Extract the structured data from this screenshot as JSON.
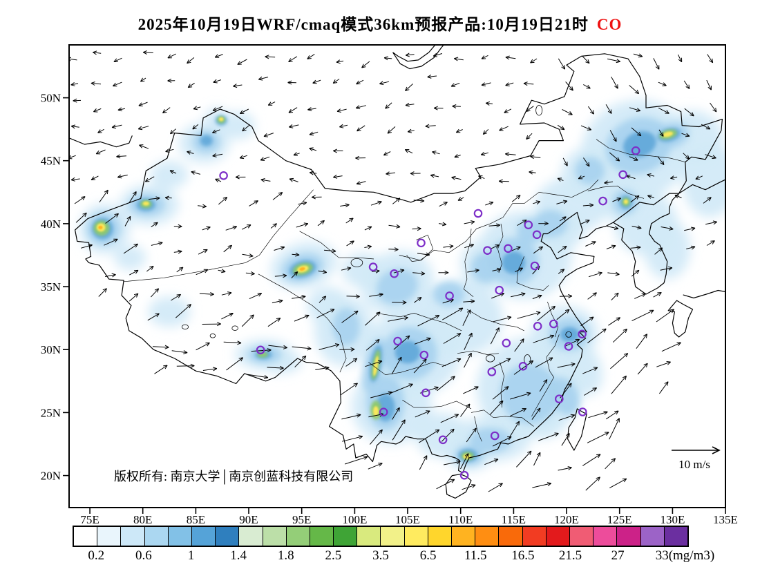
{
  "title": {
    "main": "2025年10月19日WRF/cmaq模式36km预报产品:10月19日21时",
    "species": "CO",
    "species_color": "#EE1111"
  },
  "map": {
    "copyright": "版权所有: 南京大学│南京创蓝科技有限公司",
    "wind_scale_label": "10 m/s",
    "marker_color": "#7D2EC8",
    "lat_ticks": [
      {
        "value": 50,
        "label": "50N"
      },
      {
        "value": 45,
        "label": "45N"
      },
      {
        "value": 40,
        "label": "40N"
      },
      {
        "value": 35,
        "label": "35N"
      },
      {
        "value": 30,
        "label": "30N"
      },
      {
        "value": 25,
        "label": "25N"
      },
      {
        "value": 20,
        "label": "20N"
      }
    ],
    "lon_ticks": [
      {
        "value": 75,
        "label": "75E"
      },
      {
        "value": 80,
        "label": "80E"
      },
      {
        "value": 85,
        "label": "85E"
      },
      {
        "value": 90,
        "label": "90E"
      },
      {
        "value": 95,
        "label": "95E"
      },
      {
        "value": 100,
        "label": "100E"
      },
      {
        "value": 105,
        "label": "105E"
      },
      {
        "value": 110,
        "label": "110E"
      },
      {
        "value": 115,
        "label": "115E"
      },
      {
        "value": 120,
        "label": "120E"
      },
      {
        "value": 125,
        "label": "125E"
      },
      {
        "value": 130,
        "label": "130E"
      },
      {
        "value": 135,
        "label": "135E"
      }
    ],
    "city_markers": [
      [
        87.62,
        43.82
      ],
      [
        111.65,
        40.82
      ],
      [
        126.53,
        45.8
      ],
      [
        125.32,
        43.9
      ],
      [
        123.43,
        41.8
      ],
      [
        116.4,
        39.9
      ],
      [
        117.2,
        39.13
      ],
      [
        114.48,
        38.03
      ],
      [
        112.53,
        37.87
      ],
      [
        117.0,
        36.65
      ],
      [
        101.74,
        36.56
      ],
      [
        103.73,
        36.03
      ],
      [
        106.27,
        38.47
      ],
      [
        108.95,
        34.27
      ],
      [
        113.65,
        34.72
      ],
      [
        117.27,
        31.86
      ],
      [
        118.78,
        32.04
      ],
      [
        121.47,
        31.23
      ],
      [
        120.19,
        30.26
      ],
      [
        114.31,
        30.52
      ],
      [
        104.06,
        30.67
      ],
      [
        91.11,
        29.97
      ],
      [
        106.55,
        29.57
      ],
      [
        112.94,
        28.23
      ],
      [
        115.89,
        28.68
      ],
      [
        119.3,
        26.08
      ],
      [
        106.71,
        26.57
      ],
      [
        102.73,
        25.04
      ],
      [
        108.33,
        22.84
      ],
      [
        113.23,
        23.16
      ],
      [
        110.35,
        20.02
      ],
      [
        121.52,
        25.05
      ]
    ],
    "shading_layers": [
      {
        "color": "#D3EAF8",
        "blur": 8,
        "opacity": 0.95,
        "items": [
          [
            126.5,
            45.8,
            5.2,
            4.0,
            -20
          ],
          [
            120.5,
            41.5,
            3.5,
            2.2,
            0
          ],
          [
            131.8,
            46.8,
            3.0,
            2.2,
            0
          ],
          [
            133.5,
            43.5,
            2.6,
            3.0,
            0
          ],
          [
            127.5,
            40.0,
            3.0,
            2.5,
            0
          ],
          [
            129.5,
            38.0,
            2.2,
            2.4,
            0
          ],
          [
            116.0,
            37.5,
            4.5,
            3.5,
            0
          ],
          [
            119.5,
            39.5,
            2.2,
            1.6,
            0
          ],
          [
            112.5,
            36.8,
            2.5,
            2.0,
            0
          ],
          [
            110.0,
            32.5,
            4.0,
            3.0,
            0
          ],
          [
            105.5,
            29.8,
            4.5,
            3.5,
            0
          ],
          [
            103.5,
            25.5,
            3.8,
            3.0,
            0
          ],
          [
            116.5,
            27.0,
            5.0,
            4.0,
            -15
          ],
          [
            119.8,
            31.3,
            3.2,
            2.2,
            0
          ],
          [
            112.8,
            22.9,
            3.8,
            1.8,
            0
          ],
          [
            108.2,
            23.2,
            2.5,
            1.8,
            0
          ],
          [
            104.0,
            35.3,
            3.5,
            2.5,
            -20
          ],
          [
            95.2,
            36.7,
            3.2,
            1.8,
            -15
          ],
          [
            100.8,
            36.3,
            2.0,
            1.4,
            0
          ],
          [
            99.0,
            31.5,
            2.8,
            2.8,
            0
          ],
          [
            91.5,
            29.6,
            2.8,
            1.2,
            0
          ],
          [
            82.5,
            33.0,
            2.0,
            1.2,
            0
          ],
          [
            80.6,
            41.5,
            2.8,
            1.6,
            0
          ],
          [
            76.4,
            39.6,
            2.4,
            2.0,
            0
          ],
          [
            78.8,
            37.3,
            1.5,
            1.0,
            0
          ],
          [
            85.8,
            46.4,
            2.4,
            1.6,
            0
          ],
          [
            89.0,
            47.8,
            1.6,
            1.1,
            0
          ],
          [
            82.5,
            43.9,
            1.8,
            1.1,
            0
          ],
          [
            87.0,
            48.3,
            1.2,
            0.9,
            0
          ],
          [
            122.0,
            44.0,
            2.5,
            2.0,
            0
          ],
          [
            125.0,
            42.0,
            2.2,
            1.8,
            0
          ],
          [
            118.0,
            24.8,
            2.5,
            1.8,
            -30
          ],
          [
            121.5,
            28.5,
            1.8,
            2.2,
            -20
          ],
          [
            110.8,
            21.6,
            2.2,
            1.2,
            0
          ],
          [
            97.5,
            33.5,
            2.0,
            1.5,
            0
          ],
          [
            93.0,
            29.0,
            2.0,
            0.9,
            0
          ],
          [
            129.5,
            47.0,
            2.6,
            1.6,
            -15
          ]
        ]
      },
      {
        "color": "#A6D2EE",
        "blur": 5,
        "opacity": 0.9,
        "items": [
          [
            126.8,
            46.2,
            3.2,
            2.2,
            -20
          ],
          [
            129.8,
            47.0,
            1.8,
            1.0,
            -15
          ],
          [
            115.0,
            37.0,
            2.4,
            1.9,
            0
          ],
          [
            112.4,
            36.5,
            1.4,
            1.2,
            0
          ],
          [
            105.2,
            29.7,
            2.6,
            2.1,
            0
          ],
          [
            102.9,
            25.8,
            1.8,
            2.2,
            0
          ],
          [
            116.5,
            26.5,
            2.8,
            2.4,
            -15
          ],
          [
            120.2,
            31.2,
            1.9,
            1.3,
            0
          ],
          [
            104.0,
            35.0,
            2.0,
            1.4,
            -20
          ],
          [
            95.1,
            36.5,
            2.0,
            1.1,
            -15
          ],
          [
            80.4,
            41.5,
            1.7,
            0.9,
            0
          ],
          [
            76.3,
            39.6,
            1.6,
            1.3,
            0
          ],
          [
            110.8,
            21.6,
            1.4,
            0.8,
            0
          ],
          [
            112.8,
            22.8,
            2.0,
            1.0,
            0
          ],
          [
            101.8,
            28.8,
            0.9,
            2.2,
            15
          ],
          [
            99.2,
            31.8,
            1.3,
            1.5,
            0
          ],
          [
            86.0,
            46.5,
            1.3,
            0.9,
            0
          ],
          [
            118.5,
            40.0,
            1.6,
            1.1,
            0
          ],
          [
            116.6,
            39.4,
            1.3,
            1.0,
            0
          ],
          [
            125.5,
            41.7,
            1.2,
            1.0,
            0
          ],
          [
            91.5,
            29.6,
            1.6,
            0.7,
            0
          ],
          [
            119.8,
            26.3,
            1.3,
            1.6,
            -25
          ],
          [
            122.2,
            44.2,
            1.4,
            1.1,
            0
          ],
          [
            108.9,
            34.4,
            1.5,
            1.0,
            0
          ]
        ]
      },
      {
        "color": "#5EA6D8",
        "blur": 3,
        "opacity": 0.9,
        "items": [
          [
            95.1,
            36.4,
            1.3,
            0.65,
            -15
          ],
          [
            76.2,
            39.6,
            1.0,
            0.85,
            0
          ],
          [
            80.3,
            41.5,
            0.9,
            0.5,
            0
          ],
          [
            126.9,
            46.3,
            1.6,
            1.0,
            -20
          ],
          [
            129.7,
            47.05,
            1.1,
            0.5,
            -15
          ],
          [
            102.0,
            28.9,
            0.5,
            1.5,
            10
          ],
          [
            102.9,
            25.4,
            0.9,
            1.1,
            0
          ],
          [
            105.0,
            29.8,
            1.2,
            0.9,
            0
          ],
          [
            110.7,
            21.6,
            0.9,
            0.5,
            0
          ],
          [
            115.0,
            36.9,
            1.1,
            0.9,
            0
          ],
          [
            87.4,
            48.2,
            0.55,
            0.4,
            0
          ],
          [
            125.6,
            41.7,
            0.6,
            0.55,
            0
          ],
          [
            91.4,
            29.6,
            0.8,
            0.35,
            0
          ],
          [
            86.0,
            46.6,
            0.6,
            0.45,
            0
          ],
          [
            120.3,
            31.2,
            0.9,
            0.6,
            0
          ]
        ]
      },
      {
        "color": "#8FC96A",
        "blur": 2,
        "opacity": 0.95,
        "items": [
          [
            95.1,
            36.4,
            0.95,
            0.45,
            -15
          ],
          [
            76.1,
            39.65,
            0.75,
            0.6,
            0
          ],
          [
            80.3,
            41.55,
            0.55,
            0.32,
            0
          ],
          [
            129.6,
            47.1,
            0.85,
            0.35,
            -15
          ],
          [
            102.0,
            28.8,
            0.32,
            1.2,
            10
          ],
          [
            102.0,
            25.2,
            0.5,
            0.75,
            0
          ],
          [
            110.65,
            21.55,
            0.6,
            0.33,
            0
          ],
          [
            87.4,
            48.25,
            0.38,
            0.28,
            0
          ],
          [
            125.6,
            41.72,
            0.38,
            0.34,
            0
          ],
          [
            91.3,
            29.6,
            0.5,
            0.22,
            0
          ]
        ]
      },
      {
        "color": "#FFE95C",
        "blur": 1.2,
        "opacity": 0.95,
        "items": [
          [
            95.1,
            36.4,
            0.55,
            0.26,
            -15
          ],
          [
            76.05,
            39.7,
            0.42,
            0.33,
            0
          ],
          [
            129.55,
            47.1,
            0.5,
            0.2,
            -15
          ],
          [
            102.0,
            28.7,
            0.18,
            0.8,
            10
          ],
          [
            110.6,
            21.5,
            0.36,
            0.2,
            0
          ],
          [
            87.4,
            48.3,
            0.22,
            0.16,
            0
          ],
          [
            80.3,
            41.6,
            0.3,
            0.17,
            0
          ],
          [
            102.0,
            25.1,
            0.26,
            0.4,
            0
          ],
          [
            125.6,
            41.75,
            0.2,
            0.18,
            0
          ]
        ]
      },
      {
        "color": "#FFAE1E",
        "blur": 0.8,
        "opacity": 0.9,
        "items": [
          [
            95.05,
            36.4,
            0.28,
            0.13,
            -15
          ],
          [
            76.0,
            39.7,
            0.2,
            0.15,
            0
          ]
        ]
      }
    ]
  },
  "colorbar": {
    "labels": [
      "0.2",
      "0.6",
      "1",
      "1.4",
      "1.8",
      "2.5",
      "3.5",
      "6.5",
      "11.5",
      "16.5",
      "21.5",
      "27",
      "33(mg/m3)"
    ],
    "colors": [
      "#FFFFFF",
      "#E9F5FC",
      "#CDE8F8",
      "#ABD7F1",
      "#82C1E7",
      "#55A3D8",
      "#2F7FBE",
      "#D9ECD2",
      "#BCDFA8",
      "#94CE78",
      "#65B848",
      "#3FA436",
      "#D9EA7E",
      "#F2F189",
      "#FFEB5F",
      "#FFD62C",
      "#FFB320",
      "#FF8E12",
      "#F96A0A",
      "#F23C22",
      "#E31A1C",
      "#F05C74",
      "#ED4C9B",
      "#CC2288",
      "#9C63C7",
      "#6B2FA0"
    ]
  }
}
